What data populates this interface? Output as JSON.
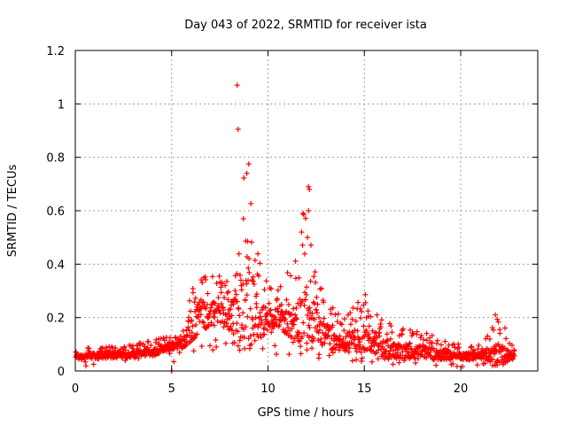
{
  "chart_data": {
    "type": "scatter",
    "title": "Day 043 of 2022, SRMTID for receiver ista",
    "xlabel": "GPS time / hours",
    "ylabel": "SRMTID / TECUs",
    "xlim": [
      0,
      24
    ],
    "ylim": [
      0,
      1.2
    ],
    "xticks": [
      0,
      5,
      10,
      15,
      20
    ],
    "xtick_labels": [
      "0",
      "5",
      "10",
      "15",
      "20"
    ],
    "yticks": [
      0,
      0.2,
      0.4,
      0.6,
      0.8,
      1.0,
      1.2
    ],
    "ytick_labels": [
      "0",
      "0.2",
      "0.4",
      "0.6",
      "0.8",
      "1",
      "1.2"
    ],
    "grid": true,
    "marker": "+",
    "series": [
      {
        "name": "SRMTID",
        "color": "#ff0000",
        "profile_x": [
          0,
          1,
          2,
          3,
          4,
          4.8,
          5.5,
          6.0,
          6.5,
          7.0,
          7.5,
          8.0,
          8.5,
          9.0,
          9.5,
          10.0,
          10.5,
          11.0,
          11.5,
          12.0,
          12.5,
          13.0,
          14.0,
          15.0,
          15.5,
          16.0,
          17.0,
          18.0,
          19.0,
          20.0,
          21.0,
          22.0,
          22.8
        ],
        "profile_median": [
          0.05,
          0.055,
          0.06,
          0.06,
          0.07,
          0.09,
          0.1,
          0.14,
          0.22,
          0.2,
          0.22,
          0.18,
          0.22,
          0.24,
          0.2,
          0.18,
          0.2,
          0.18,
          0.17,
          0.2,
          0.17,
          0.13,
          0.1,
          0.12,
          0.11,
          0.08,
          0.07,
          0.07,
          0.06,
          0.05,
          0.06,
          0.06,
          0.05
        ],
        "profile_upper": [
          0.08,
          0.09,
          0.1,
          0.1,
          0.12,
          0.13,
          0.15,
          0.3,
          0.41,
          0.35,
          0.38,
          0.32,
          0.7,
          0.78,
          0.46,
          0.35,
          0.3,
          0.37,
          0.42,
          0.69,
          0.38,
          0.27,
          0.2,
          0.29,
          0.25,
          0.2,
          0.16,
          0.15,
          0.12,
          0.1,
          0.1,
          0.21,
          0.08
        ],
        "highlighted_points": [
          [
            8.4,
            1.07
          ],
          [
            8.45,
            0.905
          ],
          [
            9.0,
            0.775
          ],
          [
            8.9,
            0.74
          ],
          [
            12.1,
            0.69
          ],
          [
            12.15,
            0.68
          ],
          [
            12.1,
            0.6
          ],
          [
            12.05,
            0.5
          ],
          [
            5.0,
            0.0
          ],
          [
            21.8,
            0.21
          ]
        ]
      }
    ]
  }
}
